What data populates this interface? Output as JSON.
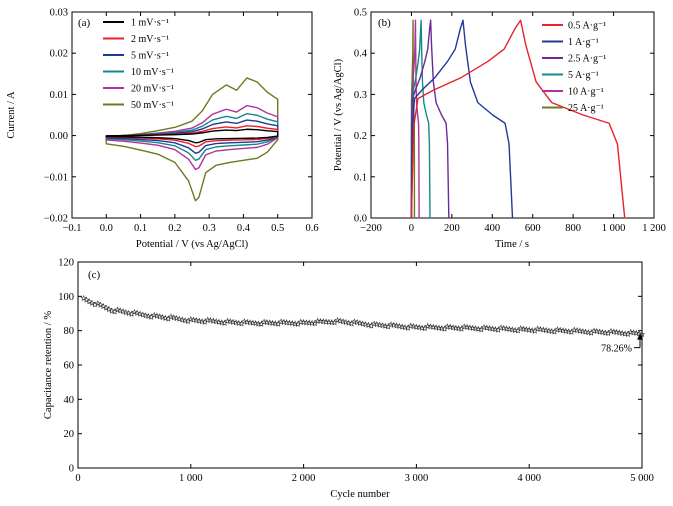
{
  "chart_data": [
    {
      "type": "line",
      "panel_label": "(a)",
      "xlabel": "Potential / V (vs Ag/AgCl)",
      "ylabel": "Current / A",
      "xlim": [
        -0.1,
        0.6
      ],
      "ylim": [
        -0.02,
        0.03
      ],
      "xticks": [
        -0.1,
        0.0,
        0.1,
        0.2,
        0.3,
        0.4,
        0.5,
        0.6
      ],
      "yticks": [
        -0.02,
        -0.01,
        0.0,
        0.01,
        0.02,
        0.03
      ],
      "xtick_labels": [
        "−0.1",
        "0.0",
        "0.1",
        "0.2",
        "0.3",
        "0.4",
        "0.5",
        "0.6"
      ],
      "ytick_labels": [
        "−0.02",
        "−0.01",
        "0.00",
        "0.01",
        "0.02",
        "0.03"
      ],
      "legend_position": "top-left",
      "series": [
        {
          "name": "1 mV·s⁻¹",
          "color": "#000000",
          "scale": 0.11
        },
        {
          "name": "2 mV·s⁻¹",
          "color": "#e8222a",
          "scale": 0.17
        },
        {
          "name": "5 mV·s⁻¹",
          "color": "#1f3a99",
          "scale": 0.27
        },
        {
          "name": "10 mV·s⁻¹",
          "color": "#138a8a",
          "scale": 0.38
        },
        {
          "name": "20 mV·s⁻¹",
          "color": "#b0329e",
          "scale": 0.52
        },
        {
          "name": "50 mV·s⁻¹",
          "color": "#6b7a1f",
          "scale": 1.0
        }
      ],
      "reference_curve_50mV": {
        "anodic": [
          [
            0.0,
            -0.0005
          ],
          [
            0.05,
            0.0
          ],
          [
            0.1,
            0.0005
          ],
          [
            0.15,
            0.0012
          ],
          [
            0.2,
            0.002
          ],
          [
            0.25,
            0.0035
          ],
          [
            0.28,
            0.006
          ],
          [
            0.31,
            0.01
          ],
          [
            0.35,
            0.0123
          ],
          [
            0.38,
            0.011
          ],
          [
            0.41,
            0.014
          ],
          [
            0.44,
            0.013
          ],
          [
            0.47,
            0.0105
          ],
          [
            0.5,
            0.0088
          ]
        ],
        "cathodic": [
          [
            0.5,
            -0.001
          ],
          [
            0.47,
            -0.004
          ],
          [
            0.44,
            -0.0055
          ],
          [
            0.4,
            -0.006
          ],
          [
            0.36,
            -0.0065
          ],
          [
            0.32,
            -0.0072
          ],
          [
            0.29,
            -0.009
          ],
          [
            0.27,
            -0.015
          ],
          [
            0.26,
            -0.0158
          ],
          [
            0.24,
            -0.011
          ],
          [
            0.2,
            -0.0065
          ],
          [
            0.15,
            -0.0045
          ],
          [
            0.1,
            -0.0035
          ],
          [
            0.05,
            -0.0026
          ],
          [
            0.0,
            -0.002
          ]
        ]
      }
    },
    {
      "type": "line",
      "panel_label": "(b)",
      "xlabel": "Time / s",
      "ylabel": "Potential / V (vs Ag/AgCl)",
      "xlim": [
        -200,
        1200
      ],
      "ylim": [
        0.0,
        0.5
      ],
      "xticks": [
        -200,
        0,
        200,
        400,
        600,
        800,
        1000,
        1200
      ],
      "yticks": [
        0.0,
        0.1,
        0.2,
        0.3,
        0.4,
        0.5
      ],
      "xtick_labels": [
        "−200",
        "0",
        "200",
        "400",
        "600",
        "800",
        "1 000",
        "1 200"
      ],
      "ytick_labels": [
        "0.0",
        "0.1",
        "0.2",
        "0.3",
        "0.4",
        "0.5"
      ],
      "legend_position": "top-right",
      "series": [
        {
          "name": "0.5 A·g⁻¹",
          "color": "#e8222a",
          "charge_time": 540,
          "total_time": 1055
        },
        {
          "name": "1 A·g⁻¹",
          "color": "#1f3a99",
          "charge_time": 255,
          "total_time": 500
        },
        {
          "name": "2.5 A·g⁻¹",
          "color": "#6b2a99",
          "charge_time": 95,
          "total_time": 185
        },
        {
          "name": "5 A·g⁻¹",
          "color": "#138a8a",
          "charge_time": 48,
          "total_time": 92
        },
        {
          "name": "10 A·g⁻¹",
          "color": "#b0329e",
          "charge_time": 20,
          "total_time": 38
        },
        {
          "name": "25 A·g⁻¹",
          "color": "#6b7a1f",
          "charge_time": 8,
          "total_time": 15
        }
      ],
      "v_max": 0.48
    },
    {
      "type": "scatter",
      "panel_label": "(c)",
      "xlabel": "Cycle number",
      "ylabel": "Capacitance retention / %",
      "xlim": [
        0,
        5000
      ],
      "ylim": [
        0,
        120
      ],
      "xticks": [
        0,
        1000,
        2000,
        3000,
        4000,
        5000
      ],
      "yticks": [
        0,
        20,
        40,
        60,
        80,
        100,
        120
      ],
      "xtick_labels": [
        "0",
        "1 000",
        "2 000",
        "3 000",
        "4 000",
        "5 000"
      ],
      "ytick_labels": [
        "0",
        "20",
        "40",
        "60",
        "80",
        "100",
        "120"
      ],
      "trend": [
        [
          0,
          100
        ],
        [
          100,
          97
        ],
        [
          300,
          92
        ],
        [
          600,
          89
        ],
        [
          1000,
          86
        ],
        [
          1500,
          84.5
        ],
        [
          2000,
          84.5
        ],
        [
          2300,
          85.5
        ],
        [
          2600,
          83.5
        ],
        [
          3000,
          82
        ],
        [
          3500,
          81.5
        ],
        [
          4000,
          80.5
        ],
        [
          4500,
          79.5
        ],
        [
          5000,
          78.3
        ]
      ],
      "annotation": {
        "text": "78.26%",
        "x": 5000,
        "y": 78.26
      }
    }
  ]
}
